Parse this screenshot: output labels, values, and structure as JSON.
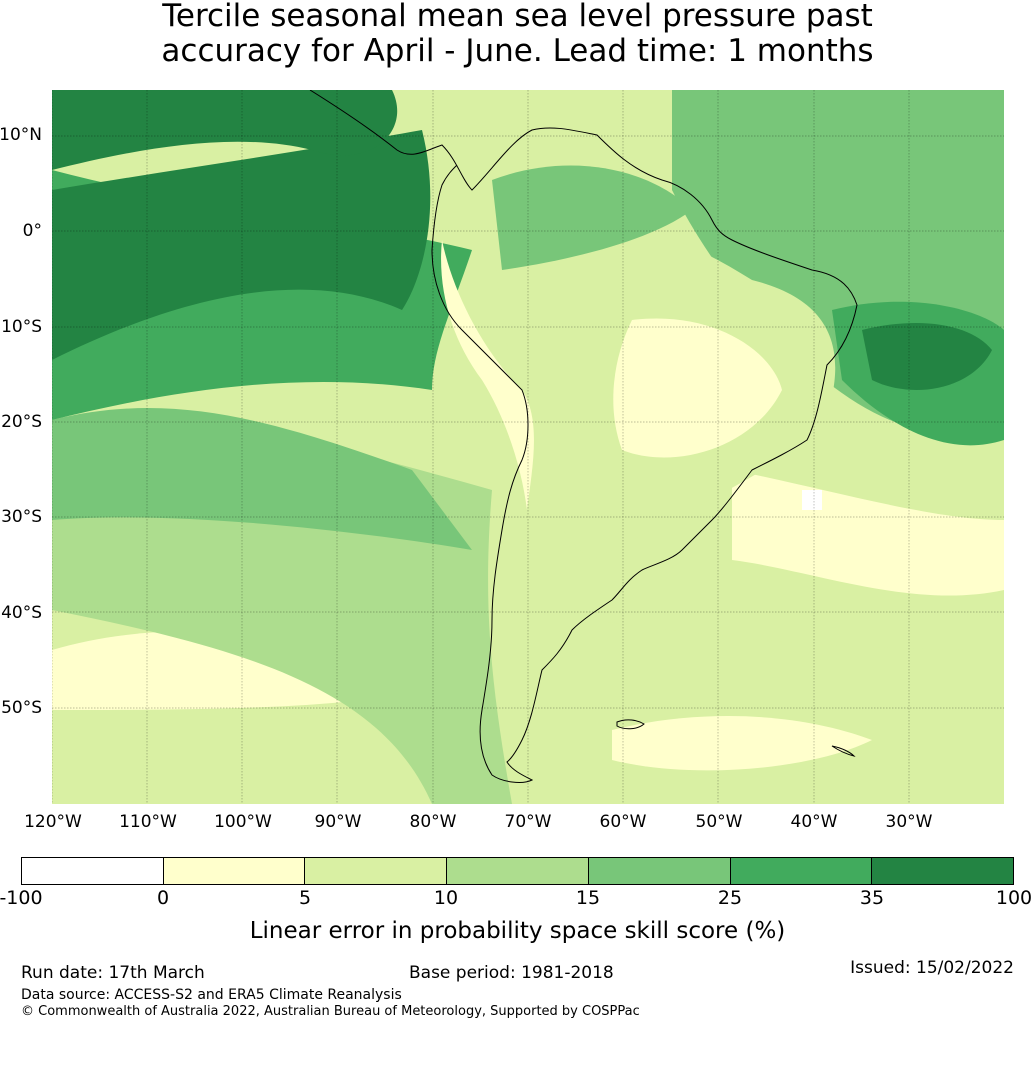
{
  "title": {
    "line1": "Tercile seasonal mean sea level pressure past",
    "line2": "accuracy for April - June. Lead time: 1 months"
  },
  "map": {
    "region": "South America",
    "lat_labels": [
      "10°N",
      "0°",
      "10°S",
      "20°S",
      "30°S",
      "40°S",
      "50°S"
    ],
    "lon_labels": [
      "120°W",
      "110°W",
      "100°W",
      "90°W",
      "80°W",
      "70°W",
      "60°W",
      "50°W",
      "40°W",
      "30°W"
    ]
  },
  "colorbar": {
    "ticks": [
      "-100",
      "0",
      "5",
      "10",
      "15",
      "25",
      "35",
      "100"
    ],
    "colors": [
      "#ffffff",
      "#ffffcc",
      "#d9f0a3",
      "#addd8e",
      "#78c679",
      "#41ab5d",
      "#238443"
    ],
    "label": "Linear error in probability space skill score (%)"
  },
  "footer": {
    "run_date": "Run date: 17th March",
    "base_period": "Base period: 1981-2018",
    "issued": "Issued: 15/02/2022",
    "data_source": "Data source: ACCESS-S2 and ERA5 Climate Reanalysis",
    "copyright": "© Commonwealth of Australia 2022, Australian Bureau of Meteorology, Supported by COSPPac"
  }
}
